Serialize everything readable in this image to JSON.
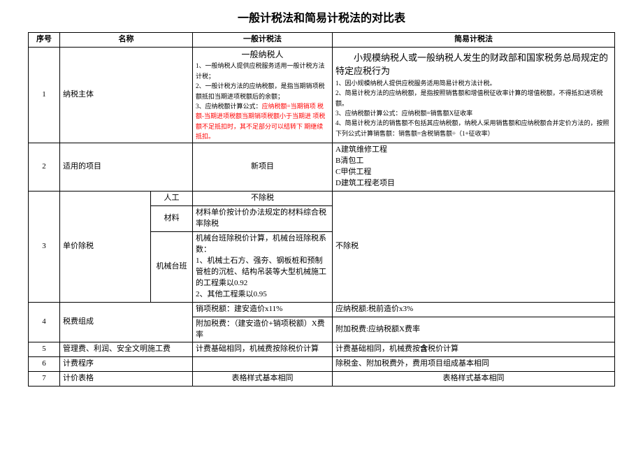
{
  "title": "一般计税法和简易计税法的对比表",
  "head": {
    "seq": "序号",
    "name": "名称",
    "general": "一般计税法",
    "simple": "简易计税法"
  },
  "r1": {
    "seq": "1",
    "name": "纳税主体",
    "gen_head": "一般纳税人",
    "gen_l1": "1、一般纳税人提供应税服务适用一般计税方法计税；",
    "gen_l2": "2、一般计税方法的应纳税额，是指当期销项税额抵扣当期进项税额后的余额；",
    "gen_l3a": "3、应纳税额计算公式：",
    "gen_l3b": "应纳税额=当期销项 税额-当期进项税额当期销项税额小于当期进 项税额不足抵扣时，其不足部分可以结转下 期继续抵扣。",
    "sim_head": "小规模纳税人或一般纳税人发生的财政部和国家税务总局规定的特定应税行为",
    "sim_l1": "1、因小规模纳税人提供应税服务适用简易计税方法计税。",
    "sim_l2": "2、简易计税方法的应纳税额，是指按照销售额和增值税征收率计算的增值税额，不得抵扣进项税额。",
    "sim_l3": "3、应纳税额计算公式：应纳税额=销售额X征收率",
    "sim_l4": "4、简易计税方法的销售额不包括其应纳税额，纳税人采用销售额和应纳税额合并定价方法的，按照下列公式计算销售额：销售额=含税销售额÷（1+征收率）"
  },
  "r2": {
    "seq": "2",
    "name": "适用的项目",
    "gen": "新项目",
    "sim_a": "A建筑维修工程",
    "sim_b": "B清包工",
    "sim_c": "C甲供工程",
    "sim_d": "D建筑工程老项目"
  },
  "r3": {
    "seq": "3",
    "name": "单价除税",
    "lab_man": "人工",
    "gen_man": "不除税",
    "lab_mat": "材料",
    "gen_mat": "材料单价按计价办法规定的材料综合税率除税",
    "lab_mach": "机械台班",
    "gen_mach": "机械台班除税价计算，机械台班除税系数：\n1、机械土石方、强夯、钢板桩和预制管桩的沉桩、结构吊装等大型机械施工的工程乘以0.92\n2、其他工程乘以0.95",
    "sim": "不除税"
  },
  "r4": {
    "seq": "4",
    "name": "税费组成",
    "gen_a": "销项税额：建安造价x11%",
    "sim_a": "应纳税额:税前造价x3%",
    "gen_b": "附加税费：（建安造价+销项税额）X费率",
    "sim_b": "附加税费:应纳税额X费率"
  },
  "r5": {
    "seq": "5",
    "name": "管理费、利润、安全文明施工费",
    "gen": "计费基础相同，机械费按除税价计算",
    "sim_a": "计费基础相同，机械费按",
    "sim_b": "含",
    "sim_c": "税价计算"
  },
  "r6": {
    "seq": "6",
    "name": "计费程序",
    "gen": "",
    "sim": "除税金、附加税费外，费用项目组成基本相同"
  },
  "r7": {
    "seq": "7",
    "name": "计价表格",
    "gen": "表格样式基本相同",
    "sim": "表格样式基本相同"
  }
}
